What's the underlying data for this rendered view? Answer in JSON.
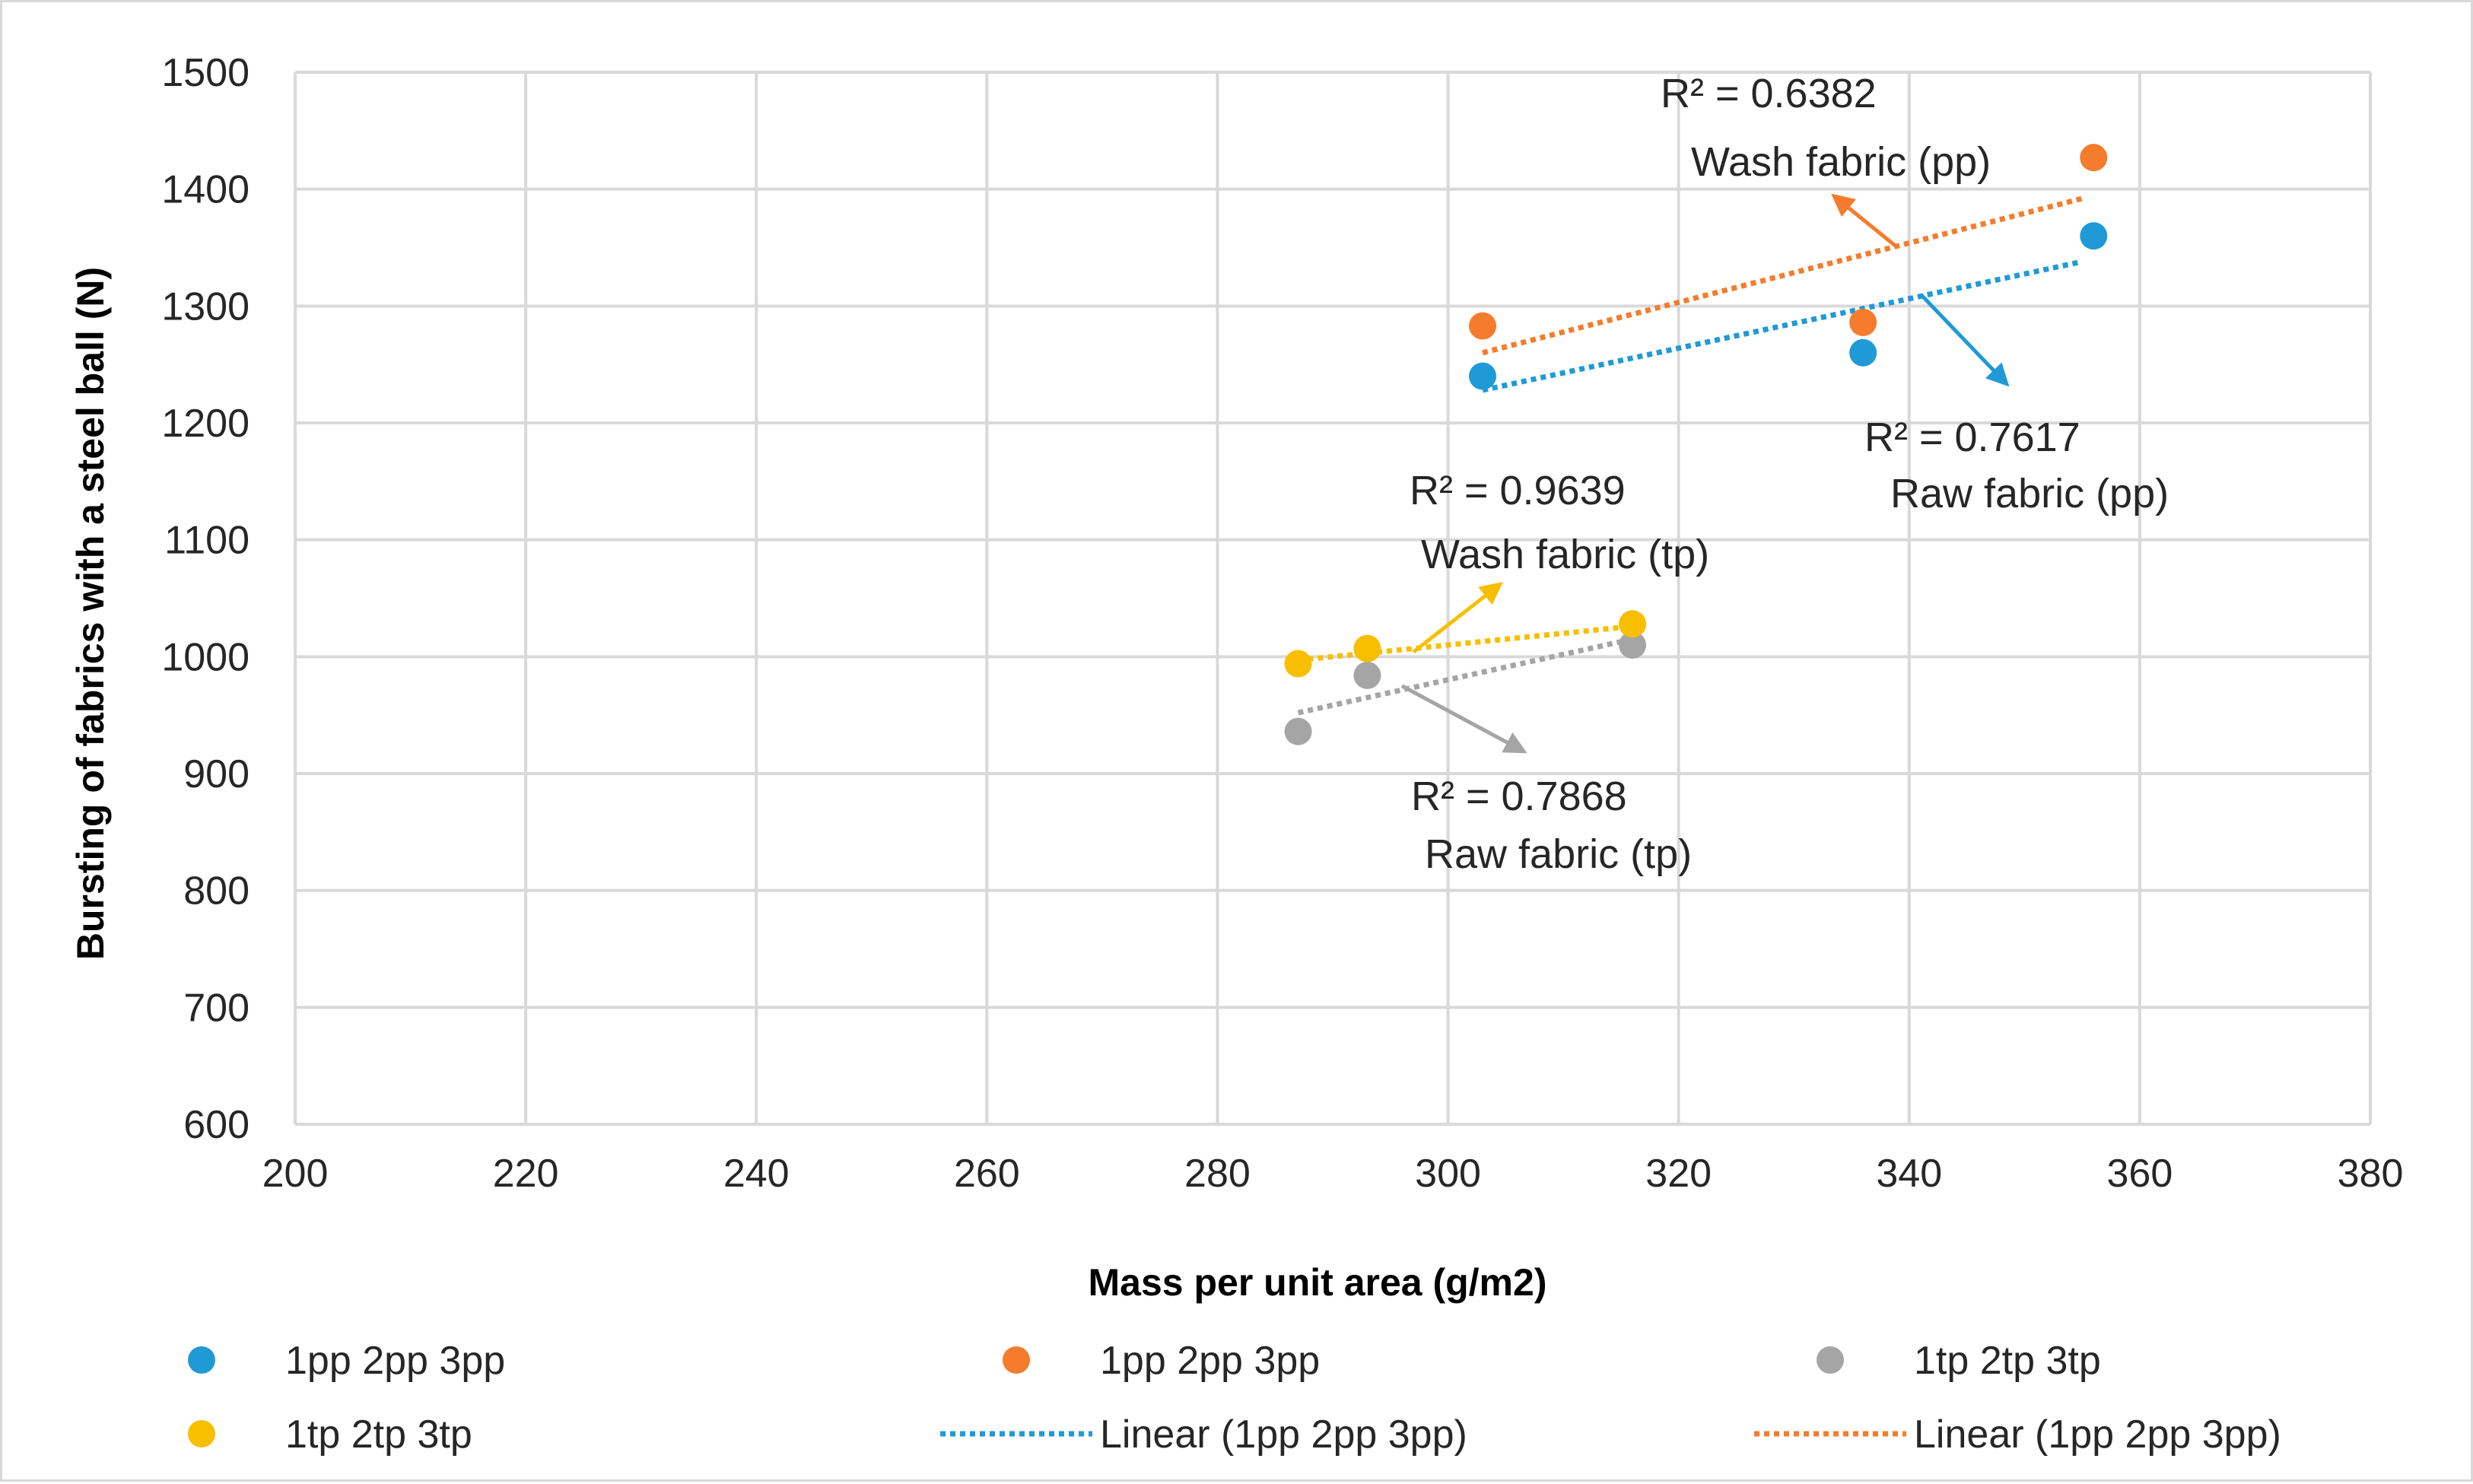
{
  "chart_data": {
    "type": "scatter",
    "xlabel": "Mass per unit area (g/m2)",
    "ylabel": "Bursting of fabrics with a steel ball (N)",
    "xlim": [
      200,
      380
    ],
    "ylim": [
      600,
      1500
    ],
    "xticks": [
      200,
      220,
      240,
      260,
      280,
      300,
      320,
      340,
      360,
      380
    ],
    "yticks": [
      600,
      700,
      800,
      900,
      1000,
      1100,
      1200,
      1300,
      1400,
      1500
    ],
    "grid": true,
    "legend_position": "bottom",
    "series": [
      {
        "name": "1pp 2pp 3pp",
        "color": "#1f9ad6",
        "x": [
          303,
          336,
          356
        ],
        "y": [
          1240,
          1260,
          1360
        ]
      },
      {
        "name": "1pp 2pp 3pp",
        "color": "#f47c2c",
        "x": [
          303,
          336,
          356
        ],
        "y": [
          1283,
          1286,
          1427
        ]
      },
      {
        "name": "1tp 2tp 3tp",
        "color": "#a5a5a5",
        "x": [
          287,
          293,
          316
        ],
        "y": [
          936,
          984,
          1010
        ]
      },
      {
        "name": "1tp 2tp 3tp",
        "color": "#f7bf00",
        "x": [
          287,
          293,
          316
        ],
        "y": [
          994,
          1007,
          1028
        ]
      }
    ],
    "trendlines": [
      {
        "name": "Linear (1pp 2pp 3pp)",
        "color": "#1f9ad6",
        "x": [
          303,
          355
        ],
        "y": [
          1228,
          1338
        ]
      },
      {
        "name": "Linear (1pp 2pp 3pp)",
        "color": "#f47c2c",
        "x": [
          303,
          355
        ],
        "y": [
          1260,
          1392
        ]
      },
      {
        "name": "",
        "color": "#a5a5a5",
        "x": [
          287,
          316
        ],
        "y": [
          952,
          1015
        ]
      },
      {
        "name": "",
        "color": "#f7bf00",
        "x": [
          287,
          316
        ],
        "y": [
          997,
          1026
        ]
      }
    ],
    "annotations": [
      {
        "r2": "R² = 0.6382",
        "label": "Wash fabric (pp)",
        "color": "#f47c2c",
        "arrow_from": [
          339,
          1350
        ],
        "arrow_to": [
          334,
          1390
        ]
      },
      {
        "r2": "R² = 0.7617",
        "label": "Raw fabric (pp)",
        "color": "#1f9ad6",
        "arrow_from": [
          341,
          1310
        ],
        "arrow_to": [
          348,
          1238
        ]
      },
      {
        "r2": "R² = 0.9639",
        "label": "Wash fabric (tp)",
        "color": "#f7bf00",
        "arrow_from": [
          297,
          1004
        ],
        "arrow_to": [
          304,
          1058
        ]
      },
      {
        "r2": "R² = 0.7868",
        "label": "Raw fabric (tp)",
        "color": "#a5a5a5",
        "arrow_from": [
          296,
          975
        ],
        "arrow_to": [
          306,
          922
        ]
      }
    ]
  }
}
